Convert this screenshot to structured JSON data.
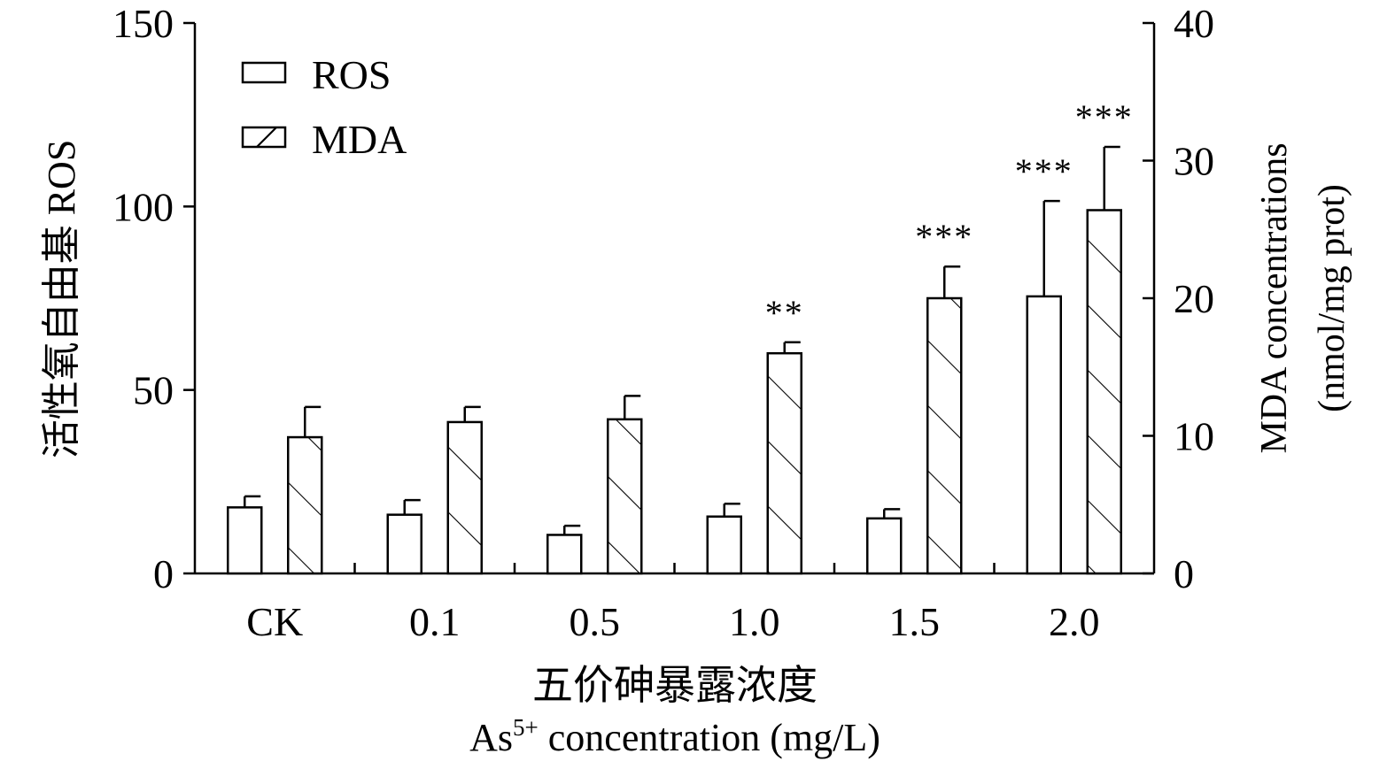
{
  "chart_data": {
    "type": "bar",
    "categories": [
      "CK",
      "0.1",
      "0.5",
      "1.0",
      "1.5",
      "2.0"
    ],
    "series": [
      {
        "name": "ROS",
        "axis": "left",
        "pattern": "none",
        "values": [
          18,
          16,
          10.5,
          15.5,
          15,
          75.5
        ],
        "errors": [
          3,
          4,
          2.5,
          3.5,
          2.5,
          26
        ],
        "significance": [
          "",
          "",
          "",
          "",
          "",
          "***"
        ]
      },
      {
        "name": "MDA",
        "axis": "right",
        "pattern": "hatch",
        "values": [
          9.9,
          11,
          11.2,
          16,
          20,
          26.4
        ],
        "errors": [
          2.2,
          1.1,
          1.7,
          0.8,
          2.3,
          4.6
        ],
        "significance": [
          "",
          "",
          "",
          "**",
          "***",
          "***"
        ]
      }
    ],
    "y_left": {
      "label": "活性氧自由基 ROS",
      "ylim": [
        0,
        150
      ],
      "ticks": [
        "0",
        "50",
        "100",
        "150"
      ]
    },
    "y_right": {
      "label_line1": "MDA concentrations",
      "label_line2": "(nmol/mg prot)",
      "ylim": [
        0,
        40
      ],
      "ticks": [
        "0",
        "10",
        "20",
        "30",
        "40"
      ]
    },
    "x": {
      "label_cn": "五价砷暴露浓度",
      "label_en_prefix": "As",
      "label_en_sup": "5+",
      "label_en_suffix": " concentration (mg/L)"
    },
    "legend": {
      "placement": "top-left",
      "entries": [
        "ROS",
        "MDA"
      ]
    },
    "grid": false
  }
}
